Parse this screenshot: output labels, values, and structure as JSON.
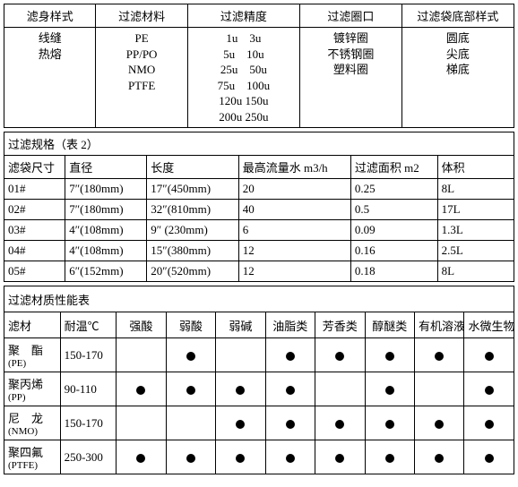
{
  "table1": {
    "headers": [
      "滤身样式",
      "过滤材料",
      "过滤精度",
      "过滤圈口",
      "过滤袋底部样式"
    ],
    "col_bodystyle": [
      "线缝",
      "热熔"
    ],
    "col_material": [
      "PE",
      "PP/PO",
      "NMO",
      "PTFE"
    ],
    "col_precision": [
      "1u　3u",
      "5u　10u",
      "25u　50u",
      "75u　100u",
      "120u 150u",
      "200u 250u"
    ],
    "col_ring": [
      "镀锌圈",
      "不锈钢圈",
      "塑料圈"
    ],
    "col_bottom": [
      "圆底",
      "尖底",
      "梯底"
    ]
  },
  "table2": {
    "title": "过滤规格（表 2）",
    "headers": [
      "滤袋尺寸",
      "直径",
      "长度",
      "最高流量水 m3/h",
      "过滤面积 m2",
      "体积"
    ],
    "rows": [
      [
        "01#",
        "7″(180mm)",
        "17″(450mm)",
        "20",
        "0.25",
        "8L"
      ],
      [
        "02#",
        "7″(180mm)",
        "32″(810mm)",
        "40",
        "0.5",
        "17L"
      ],
      [
        "03#",
        "4″(108mm)",
        "9″ (230mm)",
        "6",
        "0.09",
        "1.3L"
      ],
      [
        "04#",
        "4″(108mm)",
        "15″(380mm)",
        "12",
        "0.16",
        "2.5L"
      ],
      [
        "05#",
        "6″(152mm)",
        "20″(520mm)",
        "12",
        "0.18",
        "8L"
      ]
    ]
  },
  "table3": {
    "title": "过滤材质性能表",
    "headers": [
      "滤材",
      "耐温℃",
      "强酸",
      "弱酸",
      "弱碱",
      "油脂类",
      "芳香类",
      "醇醚类",
      "有机溶液",
      "水微生物"
    ],
    "rows": [
      {
        "name": "聚　酯",
        "sub": "(PE)",
        "temp": "150-170",
        "dots": [
          0,
          1,
          0,
          1,
          1,
          1,
          1,
          1
        ]
      },
      {
        "name": "聚丙烯",
        "sub": "(PP)",
        "temp": "90-110",
        "dots": [
          1,
          1,
          1,
          1,
          0,
          1,
          0,
          1
        ]
      },
      {
        "name": "尼　龙",
        "sub": "(NMO)",
        "temp": "150-170",
        "dots": [
          0,
          0,
          1,
          1,
          1,
          1,
          1,
          1
        ]
      },
      {
        "name": "聚四氟",
        "sub": "(PTFE)",
        "temp": "250-300",
        "dots": [
          1,
          1,
          1,
          1,
          1,
          1,
          1,
          1
        ]
      }
    ]
  }
}
